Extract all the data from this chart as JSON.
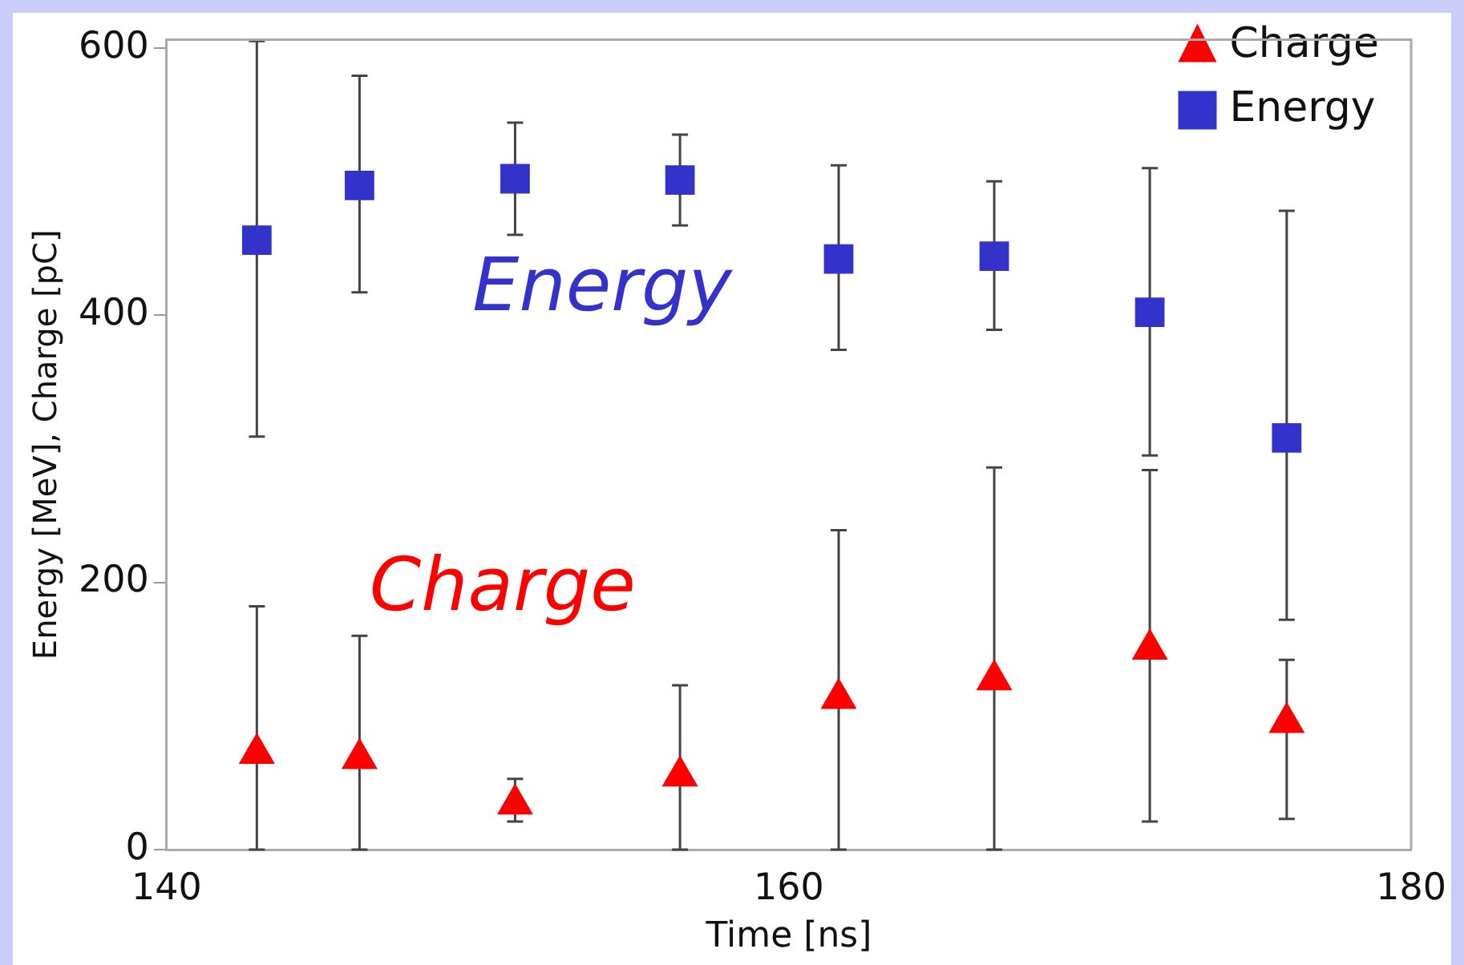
{
  "chart_data": {
    "type": "scatter",
    "xlabel": "Time [ns]",
    "ylabel": "Energy [MeV], Charge [pC]",
    "xlim": [
      140,
      180
    ],
    "xticks": [
      140,
      160,
      180
    ],
    "ylim": [
      0,
      606
    ],
    "yticks": [
      0,
      200,
      400,
      600
    ],
    "grid": false,
    "legend": "top right",
    "series": [
      {
        "name": "Charge",
        "color": "#ff0000",
        "marker": "triangle",
        "x": [
          142.9,
          146.2,
          151.2,
          156.5,
          161.6,
          166.6,
          171.6,
          176.0
        ],
        "values": [
          72,
          68,
          34,
          55,
          113,
          127,
          150,
          95
        ],
        "errors": [
          [
            0,
            182
          ],
          [
            0,
            160
          ],
          [
            21,
            53
          ],
          [
            0,
            123
          ],
          [
            0,
            239
          ],
          [
            0,
            286
          ],
          [
            21,
            284
          ],
          [
            23,
            142
          ]
        ]
      },
      {
        "name": "Energy",
        "color": "#3333cc",
        "marker": "square",
        "x": [
          142.9,
          146.2,
          151.2,
          156.5,
          161.6,
          166.6,
          171.6,
          176.0
        ],
        "values": [
          456,
          497,
          502,
          501,
          442,
          444,
          402,
          308
        ],
        "errors": [
          [
            309,
            605
          ],
          [
            417,
            579
          ],
          [
            460,
            544
          ],
          [
            467,
            535
          ],
          [
            374,
            512
          ],
          [
            389,
            500
          ],
          [
            295,
            510
          ],
          [
            172,
            478
          ]
        ]
      }
    ],
    "annotations": [
      "Charge",
      "Energy"
    ]
  }
}
